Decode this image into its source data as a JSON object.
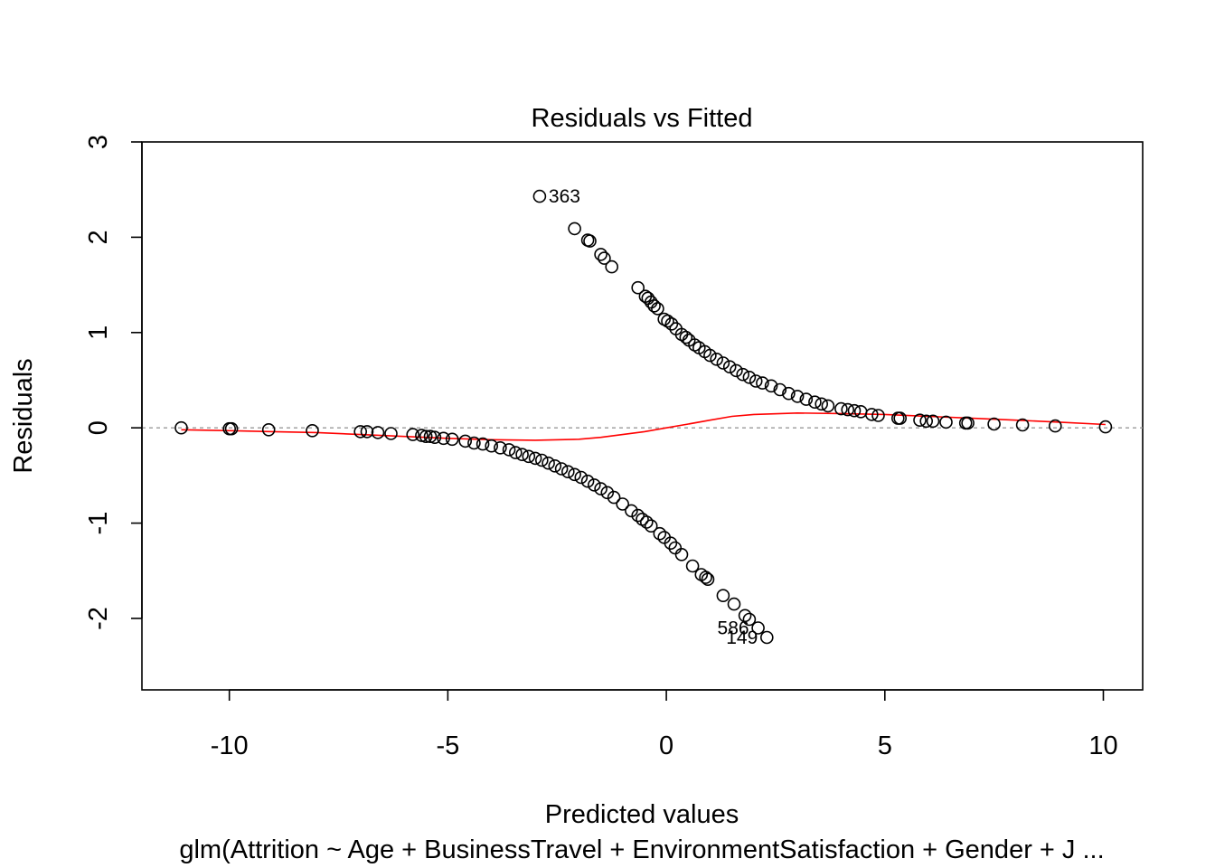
{
  "chart_data": {
    "type": "scatter",
    "title": "Residuals vs Fitted",
    "xlabel": "Predicted values",
    "ylabel": "Residuals",
    "subtitle": "glm(Attrition ~ Age + BusinessTravel + EnvironmentSatisfaction + Gender + J ...",
    "xlim": [
      -12,
      10.9
    ],
    "ylim": [
      -2.75,
      3.0
    ],
    "x_ticks": [
      -10,
      -5,
      0,
      5,
      10
    ],
    "y_ticks": [
      -2,
      -1,
      0,
      1,
      2,
      3
    ],
    "x_tick_labels": [
      "-10",
      "-5",
      "0",
      "5",
      "10"
    ],
    "y_tick_labels": [
      "-2",
      "-1",
      "0",
      "1",
      "2",
      "3"
    ],
    "reference_line": {
      "y": 0,
      "style": "dotted",
      "color": "#9a9a9a"
    },
    "colors": {
      "points": "#000000",
      "smooth": "#ff0000",
      "frame": "#000000"
    },
    "series": [
      {
        "role": "observed residuals with response 1",
        "marker": "open-circle",
        "points": [
          [
            -2.9,
            2.43
          ],
          [
            -2.1,
            2.09
          ],
          [
            -1.8,
            1.97
          ],
          [
            -1.75,
            1.96
          ],
          [
            -1.5,
            1.82
          ],
          [
            -1.42,
            1.78
          ],
          [
            -1.25,
            1.69
          ],
          [
            -0.65,
            1.47
          ],
          [
            -0.48,
            1.38
          ],
          [
            -0.42,
            1.36
          ],
          [
            -0.35,
            1.32
          ],
          [
            -0.28,
            1.28
          ],
          [
            -0.2,
            1.25
          ],
          [
            -0.05,
            1.14
          ],
          [
            0.03,
            1.12
          ],
          [
            0.12,
            1.09
          ],
          [
            0.22,
            1.04
          ],
          [
            0.35,
            0.98
          ],
          [
            0.45,
            0.95
          ],
          [
            0.52,
            0.92
          ],
          [
            0.65,
            0.87
          ],
          [
            0.75,
            0.84
          ],
          [
            0.88,
            0.8
          ],
          [
            1.0,
            0.76
          ],
          [
            1.15,
            0.72
          ],
          [
            1.3,
            0.68
          ],
          [
            1.45,
            0.64
          ],
          [
            1.6,
            0.6
          ],
          [
            1.75,
            0.56
          ],
          [
            1.9,
            0.53
          ],
          [
            2.05,
            0.49
          ],
          [
            2.2,
            0.47
          ],
          [
            2.4,
            0.44
          ],
          [
            2.6,
            0.4
          ],
          [
            2.8,
            0.36
          ],
          [
            3.0,
            0.33
          ],
          [
            3.2,
            0.3
          ],
          [
            3.4,
            0.27
          ],
          [
            3.55,
            0.25
          ],
          [
            3.7,
            0.23
          ],
          [
            4.0,
            0.2
          ],
          [
            4.15,
            0.19
          ],
          [
            4.3,
            0.18
          ],
          [
            4.45,
            0.17
          ],
          [
            4.7,
            0.14
          ],
          [
            4.85,
            0.13
          ],
          [
            5.3,
            0.1
          ],
          [
            5.35,
            0.1
          ],
          [
            5.8,
            0.08
          ],
          [
            5.95,
            0.07
          ],
          [
            6.1,
            0.07
          ],
          [
            6.4,
            0.06
          ],
          [
            6.85,
            0.05
          ],
          [
            6.9,
            0.05
          ],
          [
            7.5,
            0.04
          ],
          [
            8.15,
            0.03
          ],
          [
            8.9,
            0.02
          ],
          [
            10.05,
            0.01
          ]
        ]
      },
      {
        "role": "observed residuals with response 0",
        "marker": "open-circle",
        "points": [
          [
            -11.1,
            0.0
          ],
          [
            -10.0,
            -0.01
          ],
          [
            -9.95,
            -0.01
          ],
          [
            -9.1,
            -0.02
          ],
          [
            -8.1,
            -0.03
          ],
          [
            -7.0,
            -0.04
          ],
          [
            -6.85,
            -0.04
          ],
          [
            -6.6,
            -0.05
          ],
          [
            -6.3,
            -0.06
          ],
          [
            -5.8,
            -0.07
          ],
          [
            -5.6,
            -0.08
          ],
          [
            -5.5,
            -0.09
          ],
          [
            -5.4,
            -0.09
          ],
          [
            -5.3,
            -0.1
          ],
          [
            -5.1,
            -0.11
          ],
          [
            -4.9,
            -0.12
          ],
          [
            -4.6,
            -0.14
          ],
          [
            -4.4,
            -0.16
          ],
          [
            -4.2,
            -0.17
          ],
          [
            -4.0,
            -0.19
          ],
          [
            -3.8,
            -0.21
          ],
          [
            -3.6,
            -0.23
          ],
          [
            -3.45,
            -0.26
          ],
          [
            -3.3,
            -0.28
          ],
          [
            -3.15,
            -0.3
          ],
          [
            -3.0,
            -0.32
          ],
          [
            -2.85,
            -0.34
          ],
          [
            -2.7,
            -0.37
          ],
          [
            -2.55,
            -0.4
          ],
          [
            -2.4,
            -0.43
          ],
          [
            -2.25,
            -0.46
          ],
          [
            -2.1,
            -0.49
          ],
          [
            -1.95,
            -0.52
          ],
          [
            -1.8,
            -0.56
          ],
          [
            -1.65,
            -0.6
          ],
          [
            -1.5,
            -0.64
          ],
          [
            -1.35,
            -0.68
          ],
          [
            -1.2,
            -0.73
          ],
          [
            -1.0,
            -0.8
          ],
          [
            -0.8,
            -0.87
          ],
          [
            -0.65,
            -0.92
          ],
          [
            -0.55,
            -0.96
          ],
          [
            -0.45,
            -0.99
          ],
          [
            -0.35,
            -1.03
          ],
          [
            -0.15,
            -1.11
          ],
          [
            -0.05,
            -1.15
          ],
          [
            0.1,
            -1.21
          ],
          [
            0.2,
            -1.26
          ],
          [
            0.35,
            -1.33
          ],
          [
            0.6,
            -1.45
          ],
          [
            0.8,
            -1.54
          ],
          [
            0.9,
            -1.57
          ],
          [
            0.95,
            -1.59
          ],
          [
            1.3,
            -1.76
          ],
          [
            1.55,
            -1.85
          ],
          [
            1.8,
            -1.97
          ],
          [
            1.9,
            -2.01
          ],
          [
            2.1,
            -2.1
          ],
          [
            2.3,
            -2.2
          ]
        ]
      }
    ],
    "smooth_line": {
      "points": [
        [
          -11.1,
          -0.02
        ],
        [
          -10.0,
          -0.03
        ],
        [
          -9.0,
          -0.04
        ],
        [
          -8.0,
          -0.05
        ],
        [
          -7.0,
          -0.07
        ],
        [
          -6.0,
          -0.09
        ],
        [
          -5.0,
          -0.11
        ],
        [
          -4.0,
          -0.125
        ],
        [
          -3.0,
          -0.13
        ],
        [
          -2.0,
          -0.12
        ],
        [
          -1.5,
          -0.1
        ],
        [
          -1.0,
          -0.07
        ],
        [
          -0.5,
          -0.04
        ],
        [
          0.0,
          0.0
        ],
        [
          0.5,
          0.04
        ],
        [
          1.0,
          0.08
        ],
        [
          1.5,
          0.12
        ],
        [
          2.0,
          0.14
        ],
        [
          3.0,
          0.155
        ],
        [
          4.0,
          0.15
        ],
        [
          5.0,
          0.14
        ],
        [
          6.0,
          0.12
        ],
        [
          7.0,
          0.1
        ],
        [
          8.0,
          0.08
        ],
        [
          9.0,
          0.06
        ],
        [
          10.05,
          0.035
        ]
      ]
    },
    "annotations": [
      {
        "text": "363",
        "x": -2.9,
        "y": 2.43,
        "anchor": "right-of-point"
      },
      {
        "text": "586",
        "x": 2.1,
        "y": -2.1,
        "anchor": "left-of-point"
      },
      {
        "text": "149",
        "x": 2.3,
        "y": -2.2,
        "anchor": "left-of-point"
      }
    ]
  }
}
